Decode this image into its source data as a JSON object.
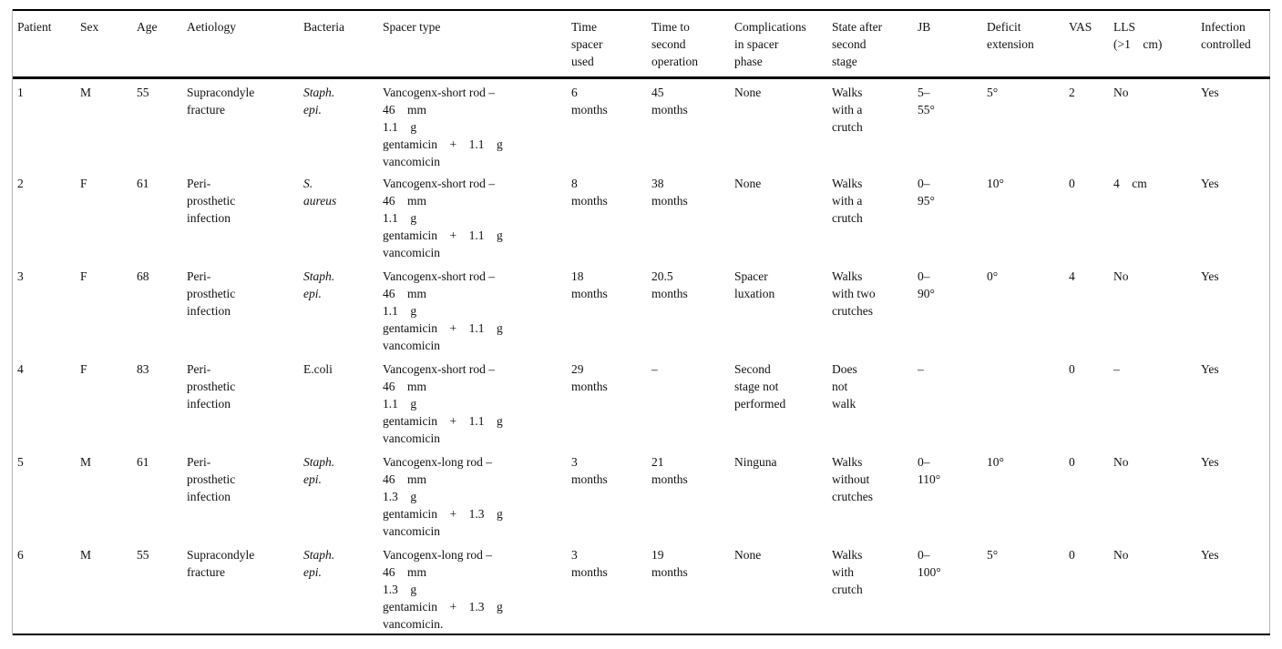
{
  "table": {
    "column_keys": [
      "patient",
      "sex",
      "age",
      "aetiology",
      "bacteria",
      "spacer-type",
      "time-spacer-used",
      "time-to-second-operation",
      "complications-in-spacer-phase",
      "state-after-second-stage",
      "jb",
      "deficit-extension",
      "vas",
      "lls",
      "infection-controlled"
    ],
    "columns": [
      "Patient",
      "Sex",
      "Age",
      "Aetiology",
      "Bacteria",
      "Spacer type",
      "Time\nspacer\nused",
      "Time to\nsecond\noperation",
      "Complications\nin spacer\nphase",
      "State after\nsecond\nstage",
      "JB",
      "Deficit\nextension",
      "VAS",
      "LLS\n(>1    cm)",
      "Infection\ncontrolled"
    ],
    "rows": [
      {
        "bacteria_italic": true,
        "cells": [
          "1",
          "M",
          "55",
          "Supracondyle\nfracture",
          "Staph.\nepi.",
          "Vancogenx-short rod –\n46    mm\n1.1    g\ngentamicin    +    1.1    g\nvancomicin",
          "6\nmonths",
          "45\nmonths",
          "None",
          "Walks\nwith a\ncrutch",
          "5–\n55°",
          "5°",
          "2",
          "No",
          "Yes"
        ]
      },
      {
        "bacteria_italic": true,
        "cells": [
          "2",
          "F",
          "61",
          "Peri-\nprosthetic\ninfection",
          "S.\naureus",
          "Vancogenx-short rod –\n46    mm\n1.1    g\ngentamicin    +    1.1    g\nvancomicin",
          "8\nmonths",
          "38\nmonths",
          "None",
          "Walks\nwith a\ncrutch",
          "0–\n95°",
          "10°",
          "0",
          "4    cm",
          "Yes"
        ]
      },
      {
        "bacteria_italic": true,
        "cells": [
          "3",
          "F",
          "68",
          "Peri-\nprosthetic\ninfection",
          "Staph.\nepi.",
          "Vancogenx-short rod –\n46    mm\n1.1    g\ngentamicin    +    1.1    g\nvancomicin",
          "18\nmonths",
          "20.5\nmonths",
          "Spacer\nluxation",
          "Walks\nwith two\ncrutches",
          "0–\n90°",
          "0°",
          "4",
          "No",
          "Yes"
        ]
      },
      {
        "bacteria_italic": false,
        "cells": [
          "4",
          "F",
          "83",
          "Peri-\nprosthetic\ninfection",
          "E.coli",
          "Vancogenx-short rod –\n46    mm\n1.1    g\ngentamicin    +    1.1    g\nvancomicin",
          "29\nmonths",
          "–",
          "Second\nstage not\nperformed",
          "Does\nnot\nwalk",
          "–",
          "",
          "0",
          "–",
          "Yes"
        ]
      },
      {
        "bacteria_italic": true,
        "cells": [
          "5",
          "M",
          "61",
          "Peri-\nprosthetic\ninfection",
          "Staph.\nepi.",
          "Vancogenx-long rod –\n46    mm\n1.3    g\ngentamicin    +    1.3    g\nvancomicin",
          "3\nmonths",
          "21\nmonths",
          "Ninguna",
          "Walks\nwithout\ncrutches",
          "0–\n110°",
          "10°",
          "0",
          "No",
          "Yes"
        ]
      },
      {
        "bacteria_italic": true,
        "cells": [
          "6",
          "M",
          "55",
          "Supracondyle\nfracture",
          "Staph.\nepi.",
          "Vancogenx-long rod –\n46    mm\n1.3    g\ngentamicin    +    1.3    g\nvancomicin.",
          "3\nmonths",
          "19\nmonths",
          "None",
          "Walks\nwith\ncrutch",
          "0–\n100°",
          "5°",
          "0",
          "No",
          "Yes"
        ]
      }
    ]
  }
}
